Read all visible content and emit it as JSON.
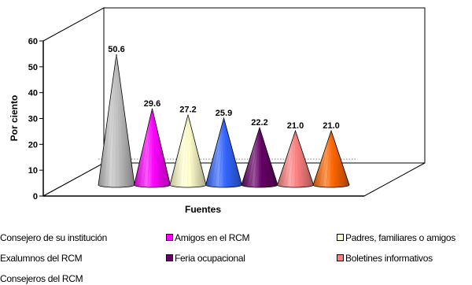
{
  "chart_data": {
    "type": "bar",
    "shape": "cone",
    "title": "",
    "xlabel": "Fuentes",
    "ylabel": "Por ciento",
    "ylim": [
      0,
      60
    ],
    "yticks": [
      "0",
      "10",
      "20",
      "30",
      "40",
      "50",
      "60"
    ],
    "grid": false,
    "legend_position": "bottom",
    "series": [
      {
        "name": "Consejero de su institución",
        "value": 50.6,
        "label": "50.6",
        "color": "#c0c0c0"
      },
      {
        "name": "Amigos en el RCM",
        "value": 29.6,
        "label": "29.6",
        "color": "#ff00ff"
      },
      {
        "name": "Padres, familiares o amigos",
        "value": 27.2,
        "label": "27.2",
        "color": "#ffffcc"
      },
      {
        "name": "Exalumnos del RCM",
        "value": 25.9,
        "label": "25.9",
        "color": "#3366ff"
      },
      {
        "name": "Feria ocupacional",
        "value": 22.2,
        "label": "22.2",
        "color": "#660066"
      },
      {
        "name": "Boletines informativos",
        "value": 21.0,
        "label": "21.0",
        "color": "#ff8080"
      },
      {
        "name": "Consejeros del RCM",
        "value": 21.0,
        "label": "21.0",
        "color": "#ff6600"
      }
    ]
  }
}
